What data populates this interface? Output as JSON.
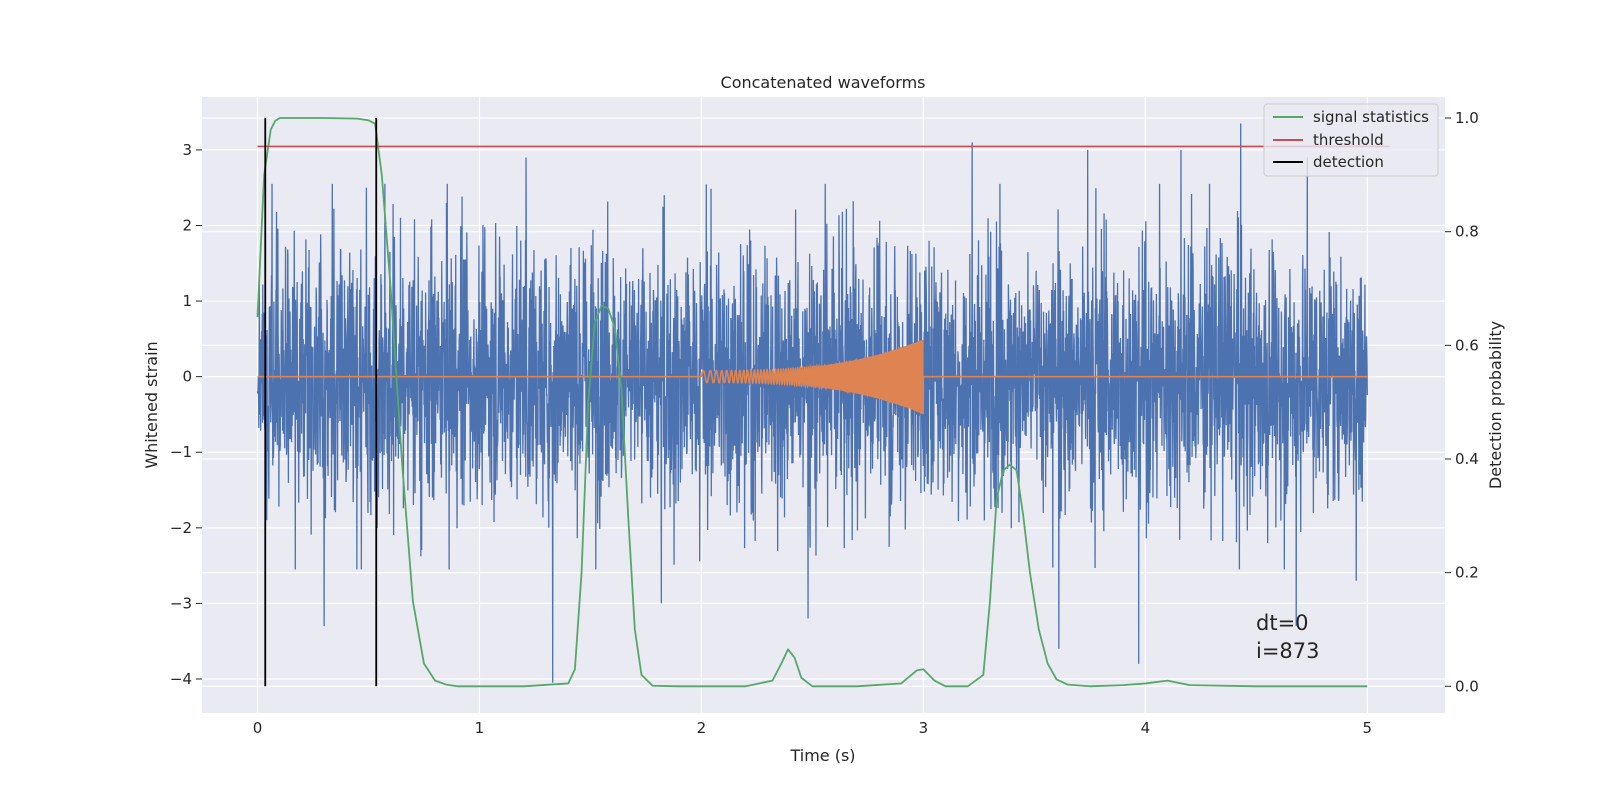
{
  "chart_data": {
    "type": "line",
    "title": "Concatenated waveforms",
    "xlabel": "Time (s)",
    "ylabel": "Whitened strain",
    "y2label": "Detection probability",
    "xlim": [
      -0.25,
      5.35
    ],
    "ylim": [
      -4.45,
      3.7
    ],
    "y2lim": [
      -0.047,
      1.037
    ],
    "grid": true,
    "legend_position": "top-right",
    "xticks": [
      0,
      1,
      2,
      3,
      4,
      5
    ],
    "xtick_labels": [
      "0",
      "1",
      "2",
      "3",
      "4",
      "5"
    ],
    "yticks": [
      3,
      2,
      1,
      0,
      -1,
      -2,
      -3,
      -4
    ],
    "ytick_labels": [
      "3",
      "2",
      "1",
      "0",
      "−1",
      "−2",
      "−3",
      "−4"
    ],
    "y2ticks": [
      1.0,
      0.8,
      0.6,
      0.4,
      0.2,
      0.0
    ],
    "y2tick_labels": [
      "1.0",
      "0.8",
      "0.6",
      "0.4",
      "0.2",
      "0.0"
    ],
    "series": [
      {
        "name": "",
        "axis": "left",
        "color": "#4c72b0",
        "style": "noise",
        "x_range": [
          0,
          5
        ],
        "typical_amplitude": 1.1,
        "extremes": [
          {
            "x": 0.3,
            "y": -3.3
          },
          {
            "x": 0.49,
            "y": 2.5
          },
          {
            "x": 0.54,
            "y": -2.0
          },
          {
            "x": 1.21,
            "y": 2.9
          },
          {
            "x": 1.33,
            "y": -4.05
          },
          {
            "x": 1.82,
            "y": -3.0
          },
          {
            "x": 2.48,
            "y": -3.2
          },
          {
            "x": 3.22,
            "y": 3.1
          },
          {
            "x": 3.61,
            "y": -3.6
          },
          {
            "x": 3.74,
            "y": 3.0
          },
          {
            "x": 4.16,
            "y": 3.0
          },
          {
            "x": 4.43,
            "y": 3.35
          },
          {
            "x": 3.97,
            "y": -3.8
          },
          {
            "x": 4.68,
            "y": -3.3
          },
          {
            "x": 4.73,
            "y": 2.9
          },
          {
            "x": 4.95,
            "y": -2.7
          }
        ]
      },
      {
        "name": "",
        "axis": "left",
        "color": "#dd8452",
        "style": "chirp",
        "flat": [
          [
            0,
            0
          ],
          [
            5,
            0
          ]
        ],
        "chirp_x_range": [
          2.0,
          3.0
        ],
        "chirp_amplitude_start": 0.08,
        "chirp_amplitude_end": 0.5
      },
      {
        "name": "signal statistics",
        "axis": "right",
        "color": "#55a868",
        "x": [
          0.0,
          0.03,
          0.06,
          0.08,
          0.1,
          0.15,
          0.3,
          0.45,
          0.5,
          0.53,
          0.56,
          0.6,
          0.65,
          0.7,
          0.75,
          0.8,
          0.85,
          0.9,
          1.0,
          1.2,
          1.4,
          1.43,
          1.46,
          1.49,
          1.52,
          1.55,
          1.58,
          1.61,
          1.64,
          1.67,
          1.7,
          1.73,
          1.78,
          1.9,
          2.2,
          2.32,
          2.36,
          2.39,
          2.42,
          2.45,
          2.5,
          2.7,
          2.9,
          2.97,
          3.0,
          3.05,
          3.1,
          3.2,
          3.27,
          3.3,
          3.33,
          3.36,
          3.39,
          3.42,
          3.45,
          3.48,
          3.52,
          3.56,
          3.6,
          3.65,
          3.75,
          3.9,
          4.0,
          4.1,
          4.2,
          4.5,
          5.0
        ],
        "y": [
          0.65,
          0.9,
          0.98,
          0.995,
          1.0,
          1.0,
          1.0,
          0.999,
          0.996,
          0.99,
          0.9,
          0.7,
          0.4,
          0.15,
          0.04,
          0.01,
          0.003,
          0.0,
          0.0,
          0.0,
          0.005,
          0.03,
          0.2,
          0.5,
          0.64,
          0.67,
          0.665,
          0.63,
          0.52,
          0.3,
          0.1,
          0.02,
          0.001,
          0.0,
          0.0,
          0.01,
          0.04,
          0.065,
          0.05,
          0.015,
          0.0,
          0.0,
          0.005,
          0.028,
          0.03,
          0.01,
          0.0,
          0.0,
          0.02,
          0.15,
          0.33,
          0.38,
          0.39,
          0.38,
          0.3,
          0.2,
          0.1,
          0.04,
          0.012,
          0.003,
          0.0,
          0.002,
          0.005,
          0.01,
          0.002,
          0.0,
          0.0
        ]
      },
      {
        "name": "threshold",
        "axis": "right",
        "color": "#c44e52",
        "x": [
          0.0,
          5.1
        ],
        "y": [
          0.95,
          0.95
        ]
      },
      {
        "name": "detection",
        "axis": "right",
        "color": "#000000",
        "style": "vertical-lines",
        "x": [
          0.035,
          0.535
        ],
        "y_extent": [
          0.0,
          1.0
        ]
      }
    ],
    "annotations": [
      "dt=0",
      "i=873"
    ]
  }
}
